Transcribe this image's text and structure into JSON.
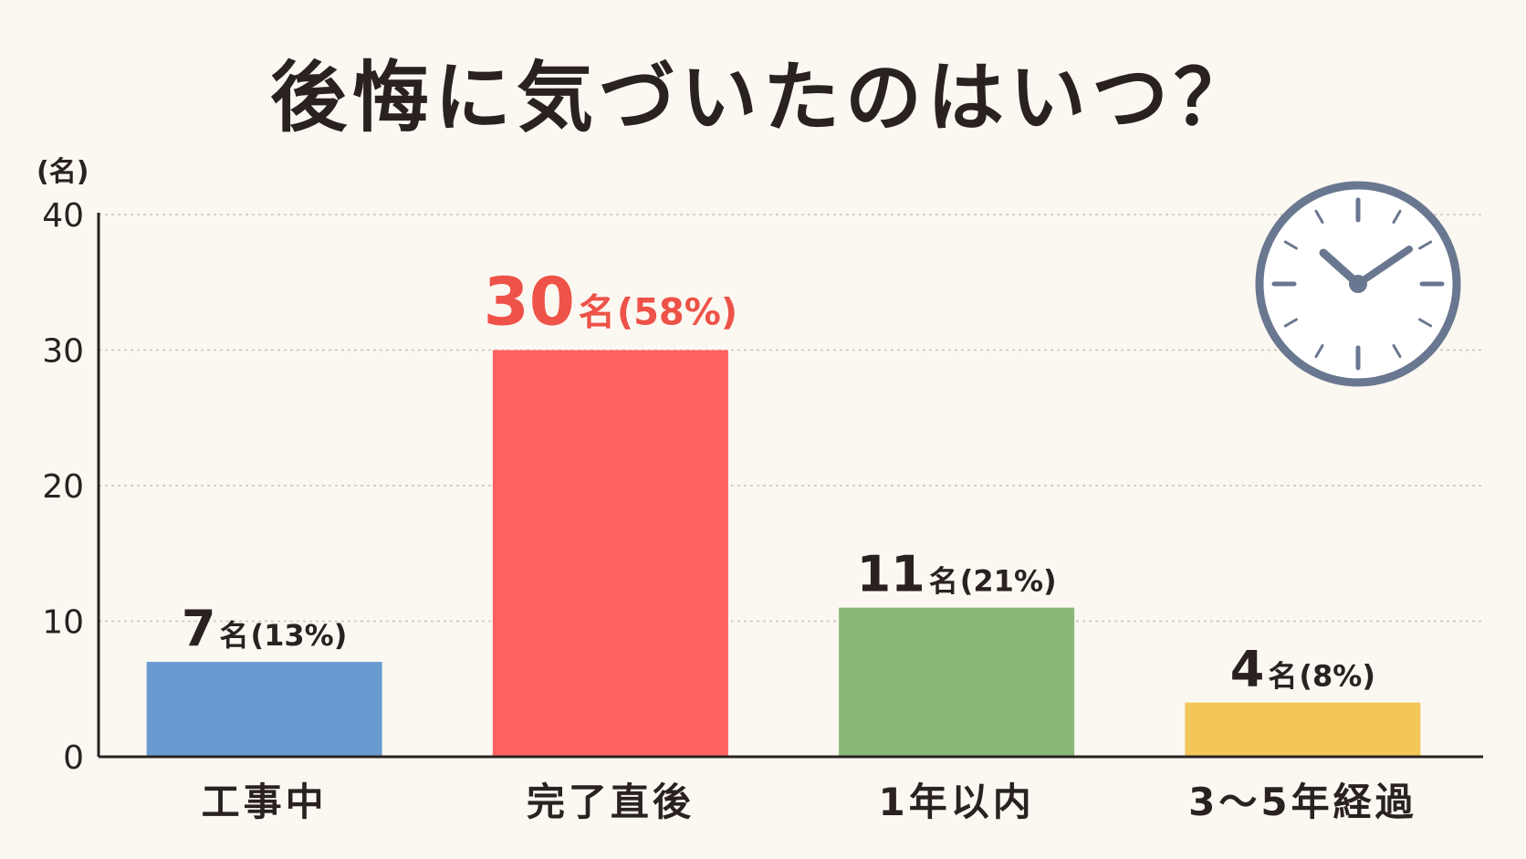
{
  "title": "後悔に気づいたのはいつ？",
  "icon": "clock-icon",
  "chart_data": {
    "type": "bar",
    "unit_label": "(名)",
    "ylim": [
      0,
      40
    ],
    "yticks": [
      "0",
      "10",
      "20",
      "30",
      "40"
    ],
    "grid": true,
    "categories": [
      "工事中",
      "完了直後",
      "1年以内",
      "3〜5年経過"
    ],
    "values": [
      7,
      30,
      11,
      4
    ],
    "percents": [
      "13%",
      "58%",
      "21%",
      "8%"
    ],
    "data_labels": [
      {
        "count": "7",
        "unit": "名",
        "pct": "(13%)"
      },
      {
        "count": "30",
        "unit": "名",
        "pct": "(58%)"
      },
      {
        "count": "11",
        "unit": "名",
        "pct": "(21%)"
      },
      {
        "count": "4",
        "unit": "名",
        "pct": "(8%)"
      }
    ],
    "colors": [
      "#6a9bd0",
      "#fd625e",
      "#8ab878",
      "#f3c65a"
    ],
    "label_colors": [
      "#2a2220",
      "#ee5248",
      "#2a2220",
      "#2a2220"
    ],
    "axis_color": "#2a2220",
    "grid_color": "#c9c4bb"
  }
}
